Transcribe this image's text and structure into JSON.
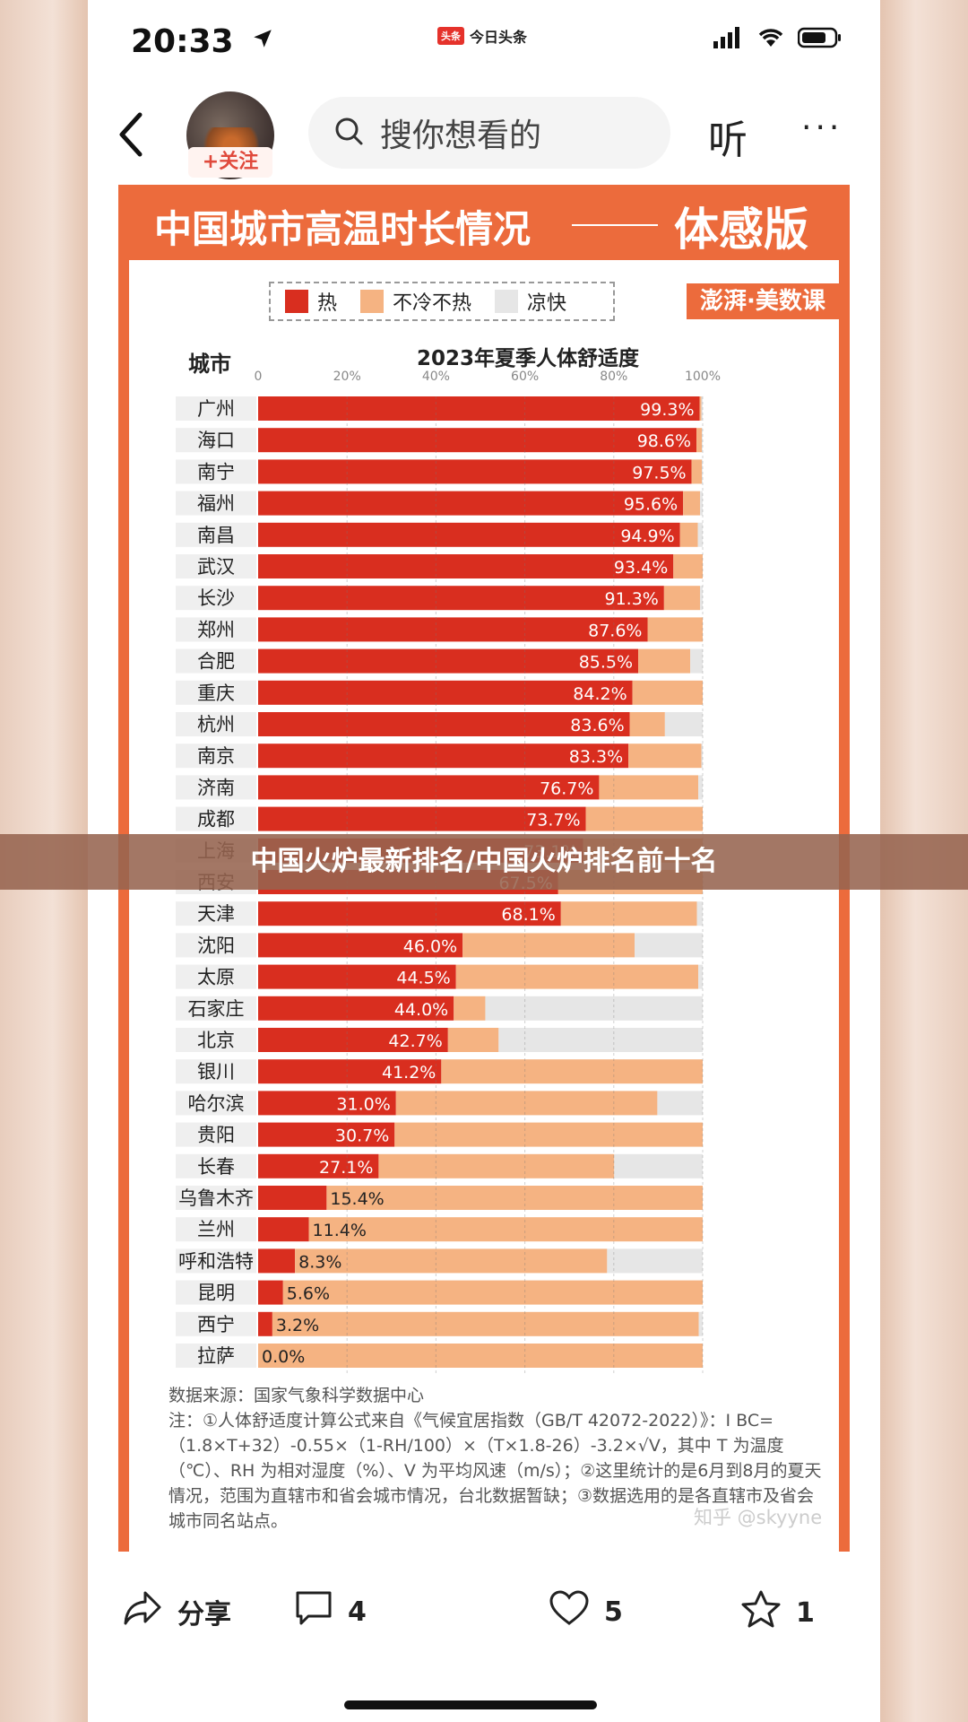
{
  "status": {
    "time": "20:33",
    "app_name": "今日头条",
    "app_logo": "头条"
  },
  "nav": {
    "follow": "+关注",
    "search_placeholder": "搜你想看的",
    "listen": "听",
    "more": "···"
  },
  "card": {
    "title_left": "中国城市高温时长情况",
    "title_right": "体感版",
    "brand": "澎湃·美数课",
    "colors": {
      "hot": "#d92e1f",
      "mild": "#f5b382",
      "cool": "#e6e6e6",
      "accent": "#ec6b3c"
    }
  },
  "chart_data": {
    "type": "bar",
    "title": "2023年夏季人体舒适度",
    "category_header": "城市",
    "xlim": [
      0,
      100
    ],
    "x_ticks": [
      "0",
      "20%",
      "40%",
      "60%",
      "80%",
      "100%"
    ],
    "legend": [
      "热",
      "不冷不热",
      "凉快"
    ],
    "categories": [
      "广州",
      "海口",
      "南宁",
      "福州",
      "南昌",
      "武汉",
      "长沙",
      "郑州",
      "合肥",
      "重庆",
      "杭州",
      "南京",
      "济南",
      "成都",
      "上海",
      "西安",
      "天津",
      "沈阳",
      "太原",
      "石家庄",
      "北京",
      "银川",
      "哈尔滨",
      "贵阳",
      "长春",
      "乌鲁木齐",
      "兰州",
      "呼和浩特",
      "昆明",
      "西宁",
      "拉萨"
    ],
    "series": [
      {
        "name": "热",
        "values": [
          99.3,
          98.6,
          97.5,
          95.6,
          94.9,
          93.4,
          91.3,
          87.6,
          85.5,
          84.2,
          83.6,
          83.3,
          76.7,
          73.7,
          73.1,
          67.5,
          68.1,
          46.0,
          44.5,
          44.0,
          42.7,
          41.2,
          31.0,
          30.7,
          27.1,
          15.4,
          11.4,
          8.3,
          5.6,
          3.2,
          0.0
        ]
      },
      {
        "name": "不冷不热",
        "values": [
          0.4,
          1.2,
          2.3,
          3.8,
          4.0,
          6.6,
          8.1,
          12.4,
          11.7,
          15.8,
          7.9,
          16.4,
          22.3,
          26.3,
          26.9,
          32.5,
          30.6,
          38.7,
          54.5,
          7.1,
          11.4,
          58.8,
          58.8,
          69.3,
          53.0,
          84.6,
          88.6,
          70.2,
          94.4,
          95.9,
          100.0
        ]
      },
      {
        "name": "凉快",
        "values": [
          0.3,
          0.2,
          0.2,
          0.6,
          1.1,
          0.0,
          0.6,
          0.0,
          2.8,
          0.0,
          8.5,
          0.3,
          1.0,
          0.0,
          0.0,
          0.0,
          1.3,
          15.3,
          1.0,
          48.9,
          45.9,
          0.0,
          10.2,
          0.0,
          19.9,
          0.0,
          0.0,
          21.5,
          0.0,
          0.9,
          0.0
        ]
      }
    ],
    "data_labels": [
      "99.3%",
      "98.6%",
      "97.5%",
      "95.6%",
      "94.9%",
      "93.4%",
      "91.3%",
      "87.6%",
      "85.5%",
      "84.2%",
      "83.6%",
      "83.3%",
      "76.7%",
      "73.7%",
      "73.1%",
      "67.5%",
      "68.1%",
      "46.0%",
      "44.5%",
      "44.0%",
      "42.7%",
      "41.2%",
      "31.0%",
      "30.7%",
      "27.1%",
      "15.4%",
      "11.4%",
      "8.3%",
      "5.6%",
      "3.2%",
      "0.0%"
    ]
  },
  "notes": {
    "source": "数据来源：国家气象科学数据中心",
    "note": "注：①人体舒适度计算公式来自《气候宜居指数（GB/T 42072-2022）》：I BC=（1.8×T+32）-0.55×（1-RH/100）×（T×1.8-26）-3.2×√V，其中 T 为温度（℃）、RH 为相对湿度（%）、V 为平均风速（m/s）；②这里统计的是6月到8月的夏天情况，范围为直辖市和省会城市情况，台北数据暂缺；③数据选用的是各直辖市及省会城市同名站点。",
    "watermark": "知乎 @skyyne"
  },
  "banner": {
    "text": "中国火炉最新排名/中国火炉排名前十名"
  },
  "actions": {
    "share": "分享",
    "comments": "4",
    "likes": "5",
    "favorites": "1"
  }
}
